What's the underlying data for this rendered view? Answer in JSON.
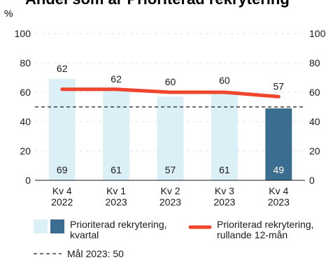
{
  "chart_data": {
    "type": "bar",
    "title": "Andel som är Prioriterad rekrytering",
    "ylabel": "%",
    "ylim": [
      0,
      100
    ],
    "yticks": [
      0,
      20,
      40,
      60,
      80,
      100
    ],
    "grid": true,
    "categories": [
      [
        "Kv 4",
        "2022"
      ],
      [
        "Kv 1",
        "2023"
      ],
      [
        "Kv 2",
        "2023"
      ],
      [
        "Kv 3",
        "2023"
      ],
      [
        "Kv 4",
        "2023"
      ]
    ],
    "series": [
      {
        "name": "Prioriterad rekrytering, kvartal",
        "name_lines": [
          "Prioriterad rekrytering,",
          "kvartal"
        ],
        "type": "bar",
        "values": [
          69,
          61,
          57,
          61,
          49
        ],
        "highlight_index": 4,
        "color": "#dbeff7",
        "highlight_color": "#3a6d8f"
      },
      {
        "name": "Prioriterad rekrytering, rullande 12-mån",
        "name_lines": [
          "Prioriterad rekrytering,",
          "rullande 12-mån"
        ],
        "type": "line",
        "values": [
          62,
          62,
          60,
          60,
          57
        ],
        "color": "#f1442d"
      }
    ],
    "reference_line": {
      "label": "Mål 2023: 50",
      "value": 50,
      "style": "dashed"
    },
    "legend_position": "bottom"
  }
}
